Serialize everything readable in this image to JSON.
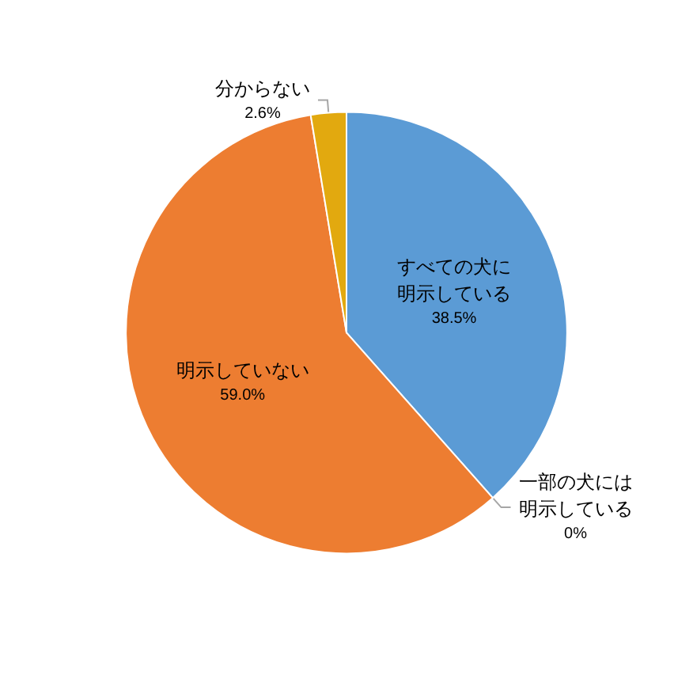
{
  "chart_data": {
    "type": "pie",
    "categories": [
      "すべての犬に明示している",
      "一部の犬には明示している",
      "明示していない",
      "分からない"
    ],
    "values": [
      38.5,
      0,
      59.0,
      2.6
    ],
    "colors": [
      "#5b9bd5",
      "#a5a5a5",
      "#ed7d31",
      "#e2a90f"
    ],
    "value_labels": [
      "38.5%",
      "0%",
      "59.0%",
      "2.6%"
    ]
  }
}
